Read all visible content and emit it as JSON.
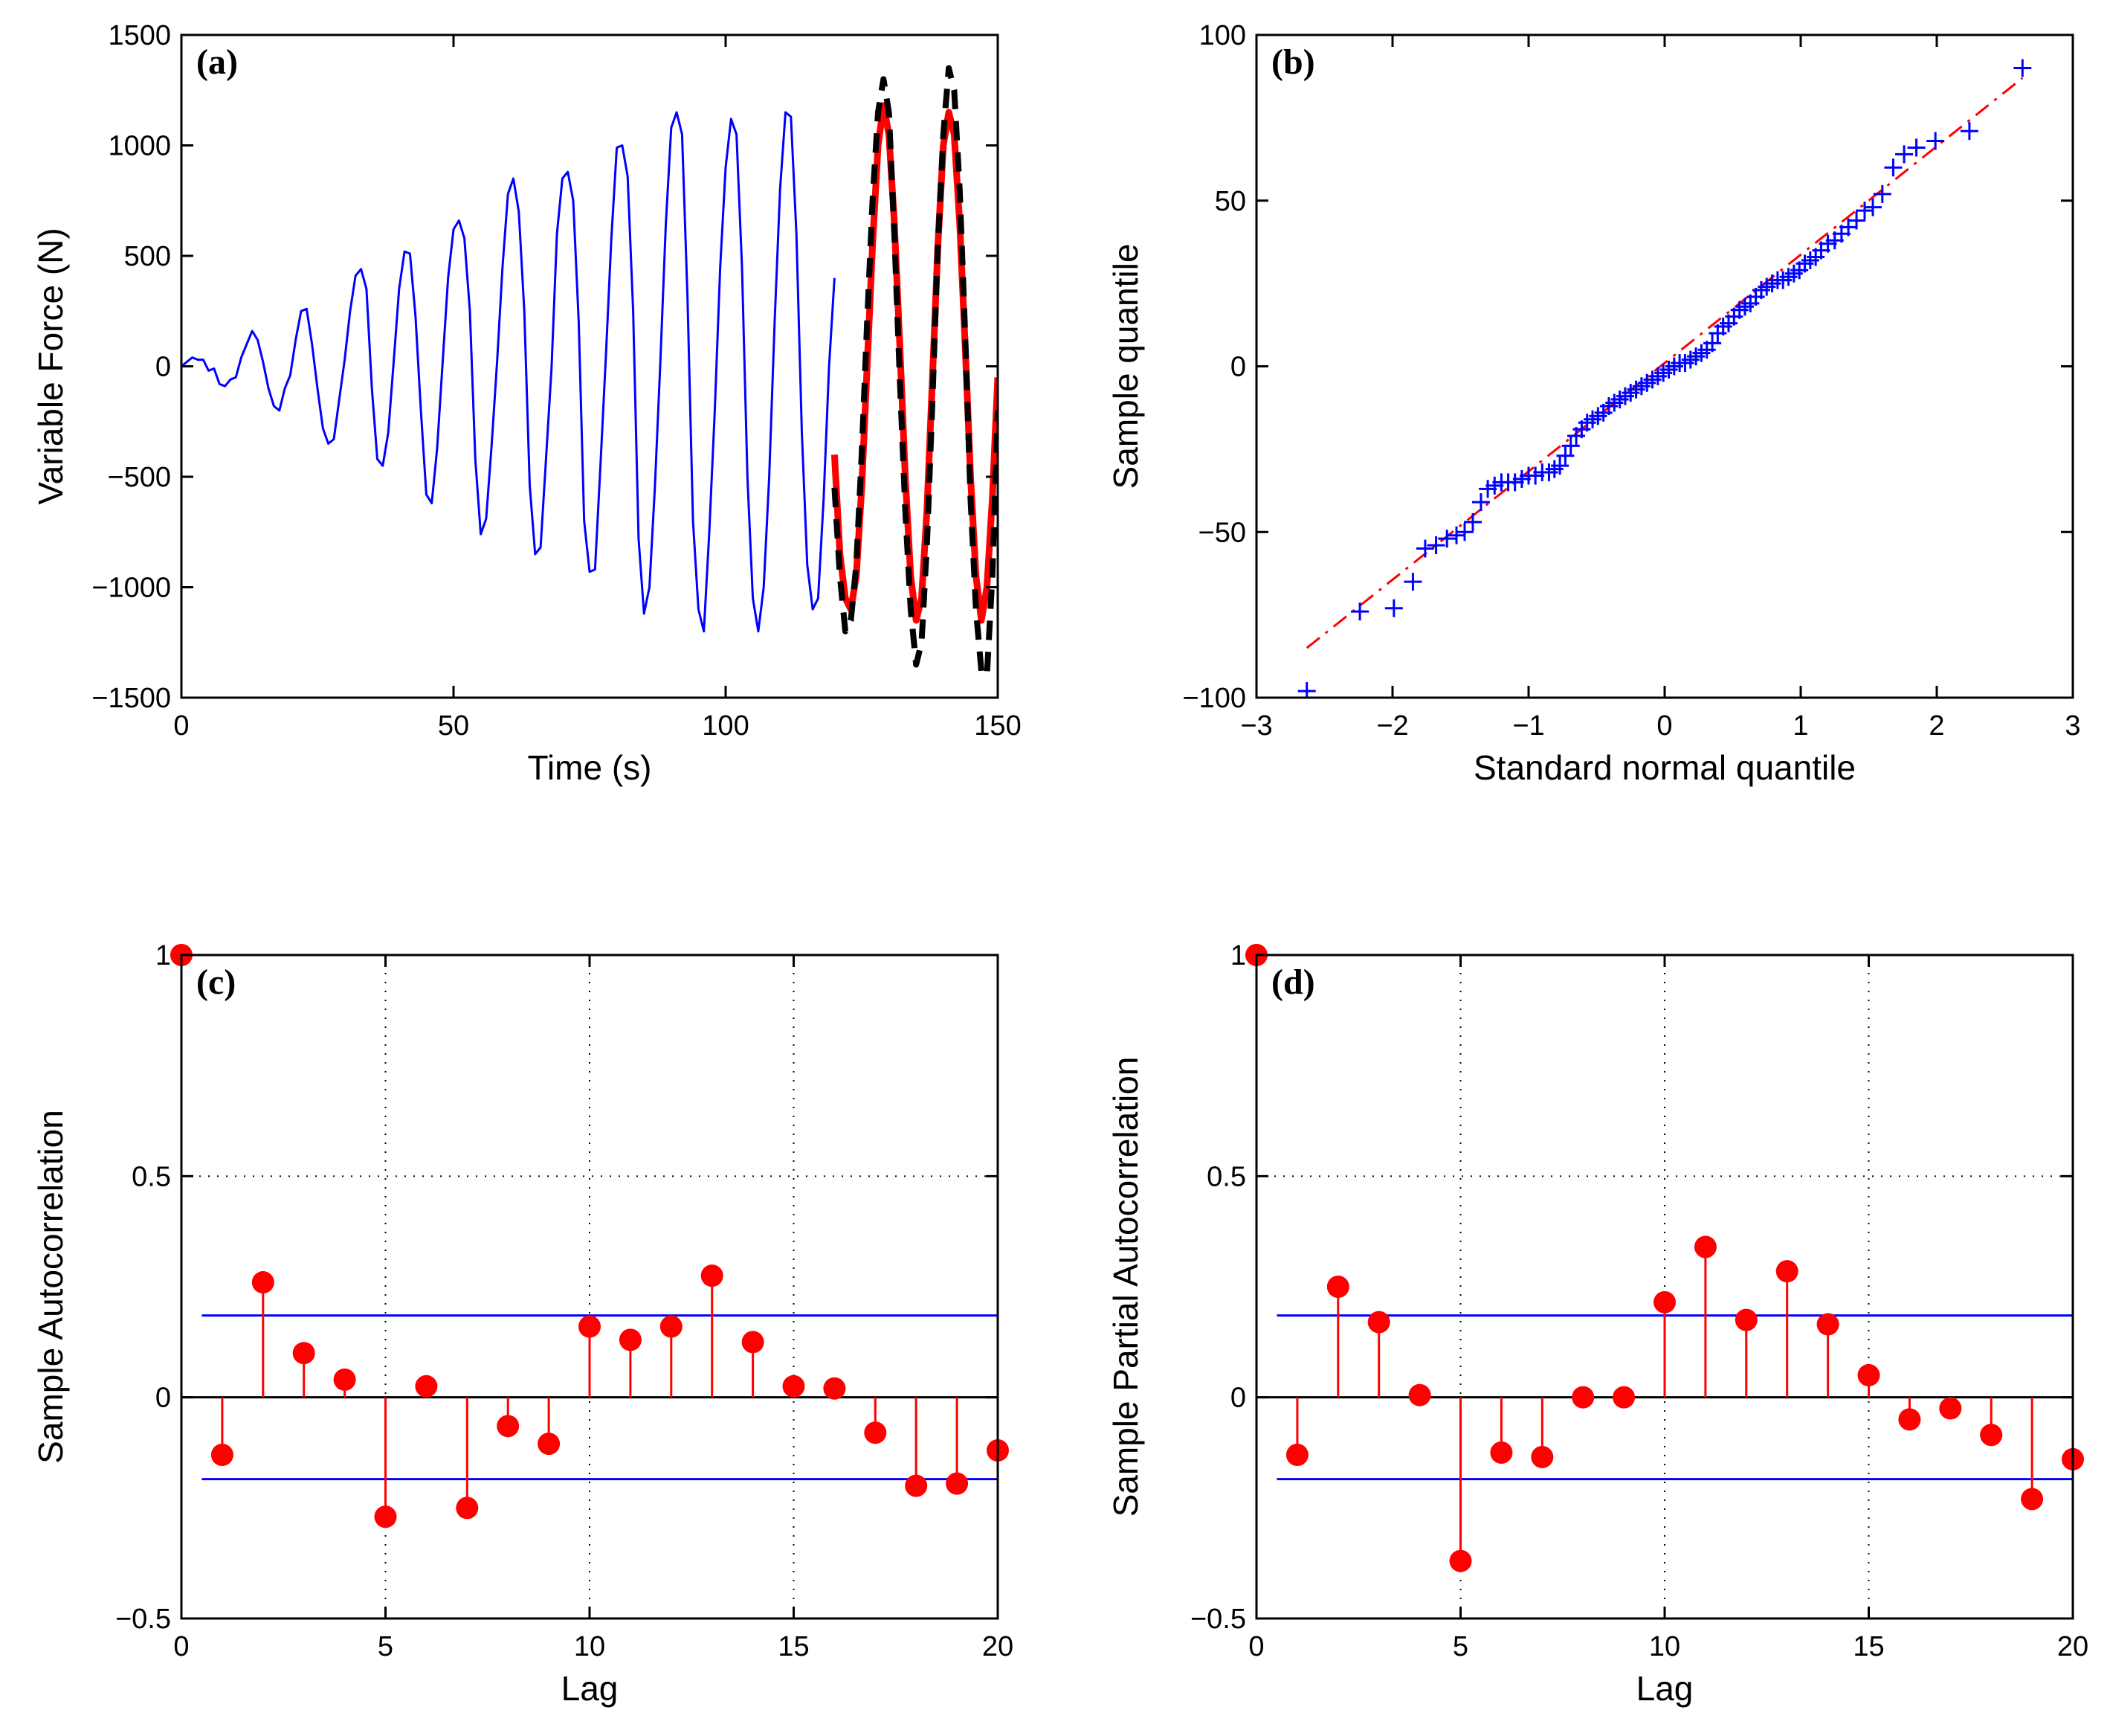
{
  "chart_data": [
    {
      "panel": "(a)",
      "type": "line",
      "xlabel": "Time (s)",
      "ylabel": "Variable Force (N)",
      "xlim": [
        0,
        150
      ],
      "ylim": [
        -1500,
        1500
      ],
      "xticks": [
        0,
        50,
        100,
        150
      ],
      "xtick_labels": [
        "0",
        "50",
        "100",
        "150"
      ],
      "yticks": [
        -1500,
        -1000,
        -500,
        0,
        500,
        1000,
        1500
      ],
      "ytick_labels": [
        "−1500",
        "−1000",
        "−500",
        "0",
        "500",
        "1000",
        "1500"
      ],
      "grid": false,
      "series": [
        {
          "color": "#0000ff",
          "style": "solid",
          "x": [
            0,
            1,
            2,
            3,
            4,
            5,
            6,
            7,
            8,
            9,
            10,
            11,
            12,
            13,
            14,
            15,
            16,
            17,
            18,
            19,
            20,
            21,
            22,
            23,
            24,
            25,
            26,
            27,
            28,
            29,
            30,
            31,
            32,
            33,
            34,
            35,
            36,
            37,
            38,
            39,
            40,
            41,
            42,
            43,
            44,
            45,
            46,
            47,
            48,
            49,
            50,
            51,
            52,
            53,
            54,
            55,
            56,
            57,
            58,
            59,
            60,
            61,
            62,
            63,
            64,
            65,
            66,
            67,
            68,
            69,
            70,
            71,
            72,
            73,
            74,
            75,
            76,
            77,
            78,
            79,
            80,
            81,
            82,
            83,
            84,
            85,
            86,
            87,
            88,
            89,
            90,
            91,
            92,
            93,
            94,
            95,
            96,
            97,
            98,
            99,
            100,
            101,
            102,
            103,
            104,
            105,
            106,
            107,
            108,
            109,
            110,
            111,
            112,
            113,
            114,
            115,
            116,
            117,
            118,
            119,
            120
          ],
          "y": [
            0,
            20,
            40,
            30,
            30,
            -20,
            -10,
            -80,
            -90,
            -60,
            -50,
            40,
            100,
            160,
            120,
            20,
            -100,
            -180,
            -200,
            -100,
            -40,
            120,
            250,
            260,
            100,
            -100,
            -280,
            -350,
            -330,
            -150,
            30,
            250,
            410,
            440,
            350,
            -100,
            -420,
            -450,
            -300,
            20,
            350,
            520,
            510,
            230,
            -200,
            -580,
            -620,
            -370,
            20,
            400,
            620,
            660,
            580,
            250,
            -420,
            -760,
            -690,
            -360,
            20,
            450,
            780,
            850,
            700,
            250,
            -540,
            -850,
            -820,
            -420,
            -10,
            600,
            850,
            880,
            750,
            200,
            -700,
            -930,
            -920,
            -450,
            50,
            580,
            990,
            1000,
            860,
            250,
            -780,
            -1120,
            -1000,
            -550,
            20,
            640,
            1080,
            1150,
            1050,
            300,
            -700,
            -1100,
            -1200,
            -750,
            -200,
            450,
            900,
            1120,
            1050,
            450,
            -500,
            -1050,
            -1200,
            -1000,
            -500,
            200,
            800,
            1150,
            1130,
            600,
            -300,
            -900,
            -1100,
            -1050,
            -600,
            0,
            400
          ]
        },
        {
          "color": "#ff0000",
          "style": "solid",
          "x": [
            120,
            121,
            122,
            123,
            124,
            125,
            126,
            127,
            128,
            129,
            130,
            131,
            132,
            133,
            134,
            135,
            136,
            137,
            138,
            139,
            140,
            141,
            142,
            143,
            144,
            145,
            146,
            147,
            148,
            149,
            150
          ],
          "y": [
            -400,
            -850,
            -1050,
            -1100,
            -950,
            -550,
            0,
            550,
            1000,
            1180,
            1050,
            650,
            100,
            -500,
            -950,
            -1150,
            -1050,
            -650,
            -50,
            550,
            1000,
            1150,
            1050,
            650,
            100,
            -500,
            -950,
            -1150,
            -1000,
            -600,
            -50
          ]
        },
        {
          "color": "#000000",
          "style": "dashed",
          "x": [
            120,
            121,
            122,
            123,
            124,
            125,
            126,
            127,
            128,
            129,
            130,
            131,
            132,
            133,
            134,
            135,
            136,
            137,
            138,
            139,
            140,
            141,
            142,
            143,
            144,
            145,
            146,
            147,
            148,
            149,
            150
          ],
          "y": [
            -550,
            -950,
            -1200,
            -1150,
            -900,
            -400,
            200,
            750,
            1150,
            1300,
            1150,
            600,
            -50,
            -650,
            -1100,
            -1350,
            -1250,
            -800,
            -150,
            550,
            1050,
            1350,
            1250,
            800,
            150,
            -600,
            -1100,
            -1380,
            -1400,
            -950,
            -200
          ]
        }
      ]
    },
    {
      "panel": "(b)",
      "type": "scatter",
      "xlabel": "Standard normal quantile",
      "ylabel": "Sample quantile",
      "xlim": [
        -3,
        3
      ],
      "ylim": [
        -100,
        100
      ],
      "xticks": [
        -3,
        -2,
        -1,
        0,
        1,
        2,
        3
      ],
      "xtick_labels": [
        "−3",
        "−2",
        "−1",
        "0",
        "1",
        "2",
        "3"
      ],
      "yticks": [
        -100,
        -50,
        0,
        50,
        100
      ],
      "ytick_labels": [
        "−100",
        "−50",
        "0",
        "50",
        "100"
      ],
      "grid": false,
      "marker_color": "#0000ff",
      "points": [
        [
          -2.63,
          -98
        ],
        [
          -2.24,
          -74
        ],
        [
          -1.99,
          -73
        ],
        [
          -1.85,
          -65
        ],
        [
          -1.76,
          -55
        ],
        [
          -1.68,
          -54
        ],
        [
          -1.6,
          -52
        ],
        [
          -1.53,
          -51
        ],
        [
          -1.47,
          -50
        ],
        [
          -1.41,
          -47
        ],
        [
          -1.35,
          -41
        ],
        [
          -1.3,
          -37
        ],
        [
          -1.25,
          -36
        ],
        [
          -1.2,
          -35
        ],
        [
          -1.15,
          -35
        ],
        [
          -1.1,
          -35
        ],
        [
          -1.05,
          -34
        ],
        [
          -1.0,
          -33
        ],
        [
          -0.95,
          -33
        ],
        [
          -0.9,
          -32
        ],
        [
          -0.85,
          -32
        ],
        [
          -0.81,
          -31
        ],
        [
          -0.77,
          -30
        ],
        [
          -0.73,
          -27
        ],
        [
          -0.69,
          -24
        ],
        [
          -0.65,
          -21
        ],
        [
          -0.61,
          -19
        ],
        [
          -0.57,
          -17
        ],
        [
          -0.53,
          -16
        ],
        [
          -0.49,
          -15
        ],
        [
          -0.45,
          -14
        ],
        [
          -0.41,
          -12
        ],
        [
          -0.37,
          -11
        ],
        [
          -0.33,
          -10
        ],
        [
          -0.29,
          -9
        ],
        [
          -0.25,
          -8
        ],
        [
          -0.21,
          -7
        ],
        [
          -0.17,
          -6
        ],
        [
          -0.13,
          -5
        ],
        [
          -0.09,
          -4
        ],
        [
          -0.05,
          -3
        ],
        [
          -0.01,
          -2
        ],
        [
          0.03,
          -1
        ],
        [
          0.07,
          0
        ],
        [
          0.11,
          1
        ],
        [
          0.15,
          1
        ],
        [
          0.19,
          2
        ],
        [
          0.23,
          3
        ],
        [
          0.27,
          4
        ],
        [
          0.31,
          5
        ],
        [
          0.35,
          7
        ],
        [
          0.39,
          10
        ],
        [
          0.43,
          12
        ],
        [
          0.47,
          13
        ],
        [
          0.51,
          15
        ],
        [
          0.55,
          17
        ],
        [
          0.59,
          18
        ],
        [
          0.63,
          19
        ],
        [
          0.67,
          21
        ],
        [
          0.71,
          23
        ],
        [
          0.75,
          24
        ],
        [
          0.79,
          25
        ],
        [
          0.83,
          26
        ],
        [
          0.87,
          26
        ],
        [
          0.91,
          27
        ],
        [
          0.95,
          28
        ],
        [
          0.99,
          29
        ],
        [
          1.03,
          31
        ],
        [
          1.07,
          32
        ],
        [
          1.11,
          33
        ],
        [
          1.15,
          35
        ],
        [
          1.2,
          37
        ],
        [
          1.25,
          38
        ],
        [
          1.3,
          40
        ],
        [
          1.35,
          42
        ],
        [
          1.41,
          44
        ],
        [
          1.47,
          47
        ],
        [
          1.53,
          48
        ],
        [
          1.6,
          52
        ],
        [
          1.68,
          60
        ],
        [
          1.76,
          64
        ],
        [
          1.85,
          66
        ],
        [
          1.99,
          68
        ],
        [
          2.24,
          71
        ],
        [
          2.63,
          90
        ]
      ],
      "reference_line": {
        "color": "#ff0000",
        "style": "dash-dot",
        "x": [
          -2.63,
          2.63
        ],
        "y": [
          -85,
          87
        ]
      }
    },
    {
      "panel": "(c)",
      "type": "stem",
      "xlabel": "Lag",
      "ylabel": "Sample Autocorrelation",
      "xlim": [
        0,
        20
      ],
      "ylim": [
        -0.5,
        1
      ],
      "xticks": [
        0,
        5,
        10,
        15,
        20
      ],
      "xtick_labels": [
        "0",
        "5",
        "10",
        "15",
        "20"
      ],
      "yticks": [
        -0.5,
        0,
        0.5,
        1
      ],
      "ytick_labels": [
        "−0.5",
        "0",
        "0.5",
        "1"
      ],
      "grid": true,
      "lags": [
        0,
        1,
        2,
        3,
        4,
        5,
        6,
        7,
        8,
        9,
        10,
        11,
        12,
        13,
        14,
        15,
        16,
        17,
        18,
        19,
        20
      ],
      "values": [
        1.0,
        -0.13,
        0.26,
        0.1,
        0.04,
        -0.27,
        0.025,
        -0.25,
        -0.065,
        -0.105,
        0.16,
        0.13,
        0.16,
        0.275,
        0.125,
        0.025,
        0.02,
        -0.08,
        -0.2,
        -0.195,
        -0.12
      ],
      "confidence_bounds": [
        0.185,
        -0.185
      ],
      "stem_color": "#ff0000",
      "bound_color": "#0000ff"
    },
    {
      "panel": "(d)",
      "type": "stem",
      "xlabel": "Lag",
      "ylabel": "Sample Partial Autocorrelation",
      "xlim": [
        0,
        20
      ],
      "ylim": [
        -0.5,
        1
      ],
      "xticks": [
        0,
        5,
        10,
        15,
        20
      ],
      "xtick_labels": [
        "0",
        "5",
        "10",
        "15",
        "20"
      ],
      "yticks": [
        -0.5,
        0,
        0.5,
        1
      ],
      "ytick_labels": [
        "−0.5",
        "0",
        "0.5",
        "1"
      ],
      "grid": true,
      "lags": [
        0,
        1,
        2,
        3,
        4,
        5,
        6,
        7,
        8,
        9,
        10,
        11,
        12,
        13,
        14,
        15,
        16,
        17,
        18,
        19,
        20
      ],
      "values": [
        1.0,
        -0.13,
        0.25,
        0.17,
        0.005,
        -0.37,
        -0.125,
        -0.135,
        0.0,
        0.0,
        0.215,
        0.34,
        0.175,
        0.285,
        0.165,
        0.05,
        -0.05,
        -0.025,
        -0.085,
        -0.23,
        -0.14
      ],
      "confidence_bounds": [
        0.185,
        -0.185
      ],
      "stem_color": "#ff0000",
      "bound_color": "#0000ff"
    }
  ]
}
